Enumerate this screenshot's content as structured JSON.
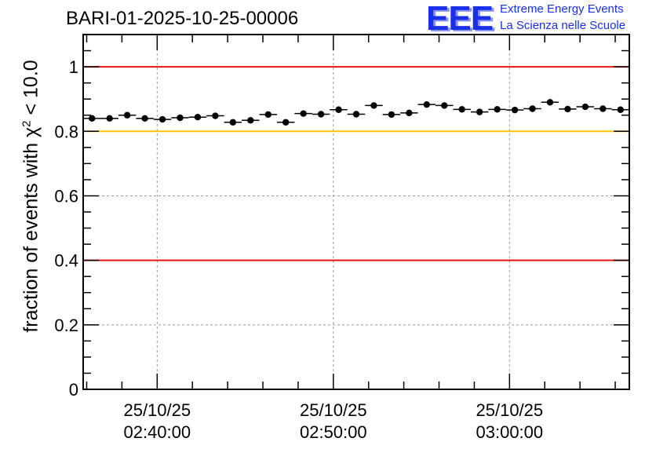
{
  "chart_data": {
    "type": "scatter",
    "title": "BARI-01-2025-10-25-00006",
    "ylabel_prefix": "fraction of events with χ",
    "ylabel_sup": "2",
    "ylabel_suffix": " < 10.0",
    "ylim": [
      0,
      1.1
    ],
    "yticks": [
      0,
      0.2,
      0.4,
      0.6,
      0.8,
      1
    ],
    "yticklabels": [
      "0",
      "0.2",
      "0.4",
      "0.6",
      "0.8",
      "1"
    ],
    "xlim_minutes": [
      -4.2,
      26.8
    ],
    "xticks": [
      {
        "minute": 0,
        "date": "25/10/25",
        "time": "02:40:00"
      },
      {
        "minute": 10,
        "date": "25/10/25",
        "time": "02:50:00"
      },
      {
        "minute": 20,
        "date": "25/10/25",
        "time": "03:00:00"
      }
    ],
    "grid": true,
    "series": [
      {
        "bin_width_minutes": 1,
        "x_minutes": [
          -3.7,
          -2.7,
          -1.7,
          -0.7,
          0.3,
          1.3,
          2.3,
          3.3,
          4.3,
          5.3,
          6.3,
          7.3,
          8.3,
          9.3,
          10.3,
          11.3,
          12.3,
          13.3,
          14.3,
          15.3,
          16.3,
          17.3,
          18.3,
          19.3,
          20.3,
          21.3,
          22.3,
          23.3,
          24.3,
          25.3,
          26.3
        ],
        "y": [
          0.84,
          0.84,
          0.85,
          0.84,
          0.837,
          0.842,
          0.844,
          0.848,
          0.828,
          0.834,
          0.852,
          0.828,
          0.855,
          0.853,
          0.867,
          0.853,
          0.88,
          0.852,
          0.857,
          0.883,
          0.88,
          0.868,
          0.86,
          0.868,
          0.866,
          0.87,
          0.89,
          0.869,
          0.876,
          0.87,
          0.867
        ]
      }
    ],
    "reference_lines": [
      {
        "y": 1.0,
        "color": "#e8130f"
      },
      {
        "y": 0.8,
        "color": "#ffc200"
      },
      {
        "y": 0.4,
        "color": "#e8130f"
      }
    ]
  },
  "logo": {
    "mark": "EEE",
    "line1": "Extreme Energy Events",
    "line2": "La Scienza nelle Scuole",
    "color": "#1a2fe8"
  }
}
